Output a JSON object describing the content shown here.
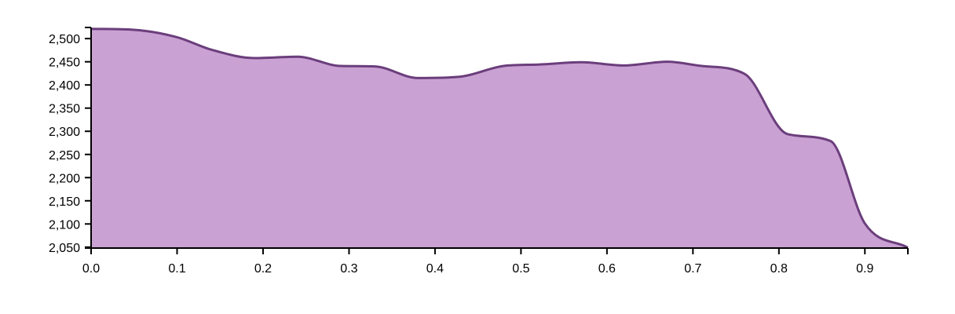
{
  "colors": {
    "area_fill": "#c9a1d3",
    "line_stroke": "#6b3e7c",
    "axis": "#000000"
  },
  "chart_data": {
    "type": "area",
    "title": "",
    "xlabel": "",
    "ylabel": "",
    "xlim": [
      0,
      0.95
    ],
    "ylim": [
      2048,
      2524
    ],
    "grid": false,
    "x_ticks": [
      0.0,
      0.1,
      0.2,
      0.3,
      0.4,
      0.5,
      0.6,
      0.7,
      0.8,
      0.9
    ],
    "x_tick_labels": [
      "0.0",
      "0.1",
      "0.2",
      "0.3",
      "0.4",
      "0.5",
      "0.6",
      "0.7",
      "0.8",
      "0.9"
    ],
    "y_ticks": [
      2050,
      2100,
      2150,
      2200,
      2250,
      2300,
      2350,
      2400,
      2450,
      2500
    ],
    "y_tick_labels": [
      "2,050",
      "2,100",
      "2,150",
      "2,200",
      "2,250",
      "2,300",
      "2,350",
      "2,400",
      "2,450",
      "2,500"
    ],
    "series": [
      {
        "x": [
          0.0,
          0.05,
          0.1,
          0.14,
          0.19,
          0.24,
          0.29,
          0.33,
          0.38,
          0.43,
          0.48,
          0.52,
          0.57,
          0.62,
          0.67,
          0.71,
          0.76,
          0.81,
          0.86,
          0.9,
          0.95
        ],
        "values": [
          2521,
          2519,
          2503,
          2476,
          2458,
          2461,
          2441,
          2440,
          2415,
          2418,
          2441,
          2444,
          2449,
          2442,
          2450,
          2441,
          2424,
          2294,
          2279,
          2101,
          2049
        ]
      }
    ]
  }
}
